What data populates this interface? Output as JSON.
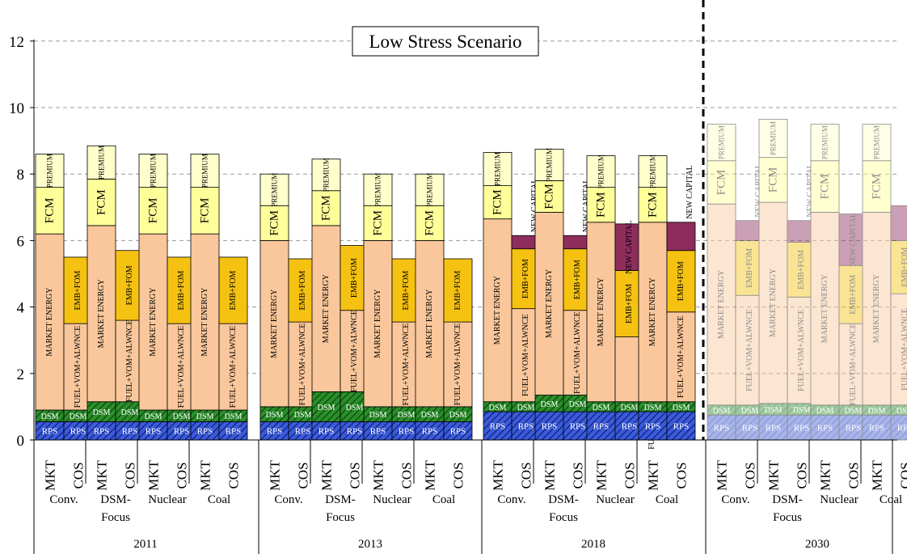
{
  "chart_data": {
    "type": "bar",
    "title": "Low Stress Scenario",
    "xlabel": "",
    "ylabel": "",
    "ylim": [
      0,
      12
    ],
    "yticks": [
      0,
      2,
      4,
      6,
      8,
      10,
      12
    ],
    "grid": true,
    "component_labels": {
      "rps": "RPS",
      "dsm": "DSM",
      "energy": "MARKET ENERGY",
      "fuel": "FUEL+VOM+ALWNCE",
      "emb": "EMB+FOM",
      "newcap": "NEW CAPITAL",
      "fcm": "FCM",
      "premium": "PREMIUM"
    },
    "colors": {
      "rps": "#3b5bdb",
      "dsm": "#1e7a1e",
      "energy": "#f9c79b",
      "emb": "#f5c211",
      "newcap": "#8e2d5c",
      "fcm": "#ffff99",
      "premium": "#ffffcc",
      "outline": "#000000"
    },
    "years": [
      {
        "label": "2011",
        "faded": false,
        "scenarios": [
          {
            "name": "Conv.",
            "mkt": {
              "rps": 0.55,
              "dsm": 0.35,
              "energy": 5.3,
              "fcm": 1.4,
              "premium": 1.0
            },
            "cos": {
              "rps": 0.55,
              "dsm": 0.35,
              "fuel": 2.6,
              "emb": 2.0,
              "newcap": 0
            }
          },
          {
            "name": "DSM-\nFocus",
            "mkt": {
              "rps": 0.55,
              "dsm": 0.6,
              "energy": 5.3,
              "fcm": 1.4,
              "premium": 1.0
            },
            "cos": {
              "rps": 0.55,
              "dsm": 0.6,
              "fuel": 2.45,
              "emb": 2.1,
              "newcap": 0
            }
          },
          {
            "name": "Nuclear",
            "mkt": {
              "rps": 0.55,
              "dsm": 0.35,
              "energy": 5.3,
              "fcm": 1.4,
              "premium": 1.0
            },
            "cos": {
              "rps": 0.55,
              "dsm": 0.35,
              "fuel": 2.6,
              "emb": 2.0,
              "newcap": 0
            }
          },
          {
            "name": "Coal",
            "mkt": {
              "rps": 0.55,
              "dsm": 0.35,
              "energy": 5.3,
              "fcm": 1.4,
              "premium": 1.0
            },
            "cos": {
              "rps": 0.55,
              "dsm": 0.35,
              "fuel": 2.6,
              "emb": 2.0,
              "newcap": 0
            }
          }
        ]
      },
      {
        "label": "2013",
        "faded": false,
        "scenarios": [
          {
            "name": "Conv.",
            "mkt": {
              "rps": 0.55,
              "dsm": 0.45,
              "energy": 5.0,
              "fcm": 1.05,
              "premium": 0.95
            },
            "cos": {
              "rps": 0.55,
              "dsm": 0.45,
              "fuel": 2.55,
              "emb": 1.9,
              "newcap": 0
            }
          },
          {
            "name": "DSM-\nFocus",
            "mkt": {
              "rps": 0.55,
              "dsm": 0.9,
              "energy": 5.0,
              "fcm": 1.05,
              "premium": 0.95
            },
            "cos": {
              "rps": 0.55,
              "dsm": 0.9,
              "fuel": 2.45,
              "emb": 1.95,
              "newcap": 0
            }
          },
          {
            "name": "Nuclear",
            "mkt": {
              "rps": 0.55,
              "dsm": 0.45,
              "energy": 5.0,
              "fcm": 1.05,
              "premium": 0.95
            },
            "cos": {
              "rps": 0.55,
              "dsm": 0.45,
              "fuel": 2.55,
              "emb": 1.9,
              "newcap": 0
            }
          },
          {
            "name": "Coal",
            "mkt": {
              "rps": 0.55,
              "dsm": 0.45,
              "energy": 5.0,
              "fcm": 1.05,
              "premium": 0.95
            },
            "cos": {
              "rps": 0.55,
              "dsm": 0.45,
              "fuel": 2.55,
              "emb": 1.9,
              "newcap": 0
            }
          }
        ]
      },
      {
        "label": "2018",
        "faded": false,
        "scenarios": [
          {
            "name": "Conv.",
            "mkt": {
              "rps": 0.85,
              "dsm": 0.3,
              "energy": 5.5,
              "fcm": 1.0,
              "premium": 1.0
            },
            "cos": {
              "rps": 0.85,
              "dsm": 0.3,
              "fuel": 2.8,
              "emb": 1.8,
              "newcap": 0.4
            }
          },
          {
            "name": "DSM-\nFocus",
            "mkt": {
              "rps": 0.85,
              "dsm": 0.5,
              "energy": 5.5,
              "fcm": 0.95,
              "premium": 0.95
            },
            "cos": {
              "rps": 0.85,
              "dsm": 0.5,
              "fuel": 2.55,
              "emb": 1.85,
              "newcap": 0.4
            }
          },
          {
            "name": "Nuclear",
            "mkt": {
              "rps": 0.85,
              "dsm": 0.3,
              "energy": 5.4,
              "fcm": 1.05,
              "premium": 0.95
            },
            "cos": {
              "rps": 0.85,
              "dsm": 0.3,
              "fuel": 1.95,
              "emb": 2.0,
              "newcap": 1.4
            }
          },
          {
            "name": "Coal",
            "mkt": {
              "rps": 0.85,
              "dsm": 0.3,
              "energy": 5.4,
              "fcm": 1.05,
              "premium": 0.95
            },
            "cos": {
              "rps": 0.85,
              "dsm": 0.3,
              "fuel": 2.7,
              "emb": 1.85,
              "newcap": 0.85
            }
          }
        ]
      },
      {
        "label": "2030",
        "faded": true,
        "scenarios": [
          {
            "name": "Conv.",
            "mkt": {
              "rps": 0.75,
              "dsm": 0.3,
              "energy": 6.05,
              "fcm": 1.3,
              "premium": 1.1
            },
            "cos": {
              "rps": 0.75,
              "dsm": 0.3,
              "fuel": 3.3,
              "emb": 1.65,
              "newcap": 0.6
            }
          },
          {
            "name": "DSM-\nFocus",
            "mkt": {
              "rps": 0.75,
              "dsm": 0.35,
              "energy": 6.05,
              "fcm": 1.35,
              "premium": 1.15
            },
            "cos": {
              "rps": 0.75,
              "dsm": 0.35,
              "fuel": 3.2,
              "emb": 1.65,
              "newcap": 0.65
            }
          },
          {
            "name": "Nuclear",
            "mkt": {
              "rps": 0.75,
              "dsm": 0.3,
              "energy": 5.8,
              "fcm": 1.55,
              "premium": 1.1
            },
            "cos": {
              "rps": 0.75,
              "dsm": 0.3,
              "fuel": 2.45,
              "emb": 1.75,
              "newcap": 1.55
            }
          },
          {
            "name": "Coal",
            "mkt": {
              "rps": 0.75,
              "dsm": 0.3,
              "energy": 5.8,
              "fcm": 1.55,
              "premium": 1.1
            },
            "cos": {
              "rps": 0.75,
              "dsm": 0.3,
              "fuel": 3.35,
              "emb": 1.6,
              "newcap": 1.05
            }
          }
        ]
      }
    ],
    "bar_labels": {
      "mkt": "MKT",
      "cos": "COS"
    }
  }
}
